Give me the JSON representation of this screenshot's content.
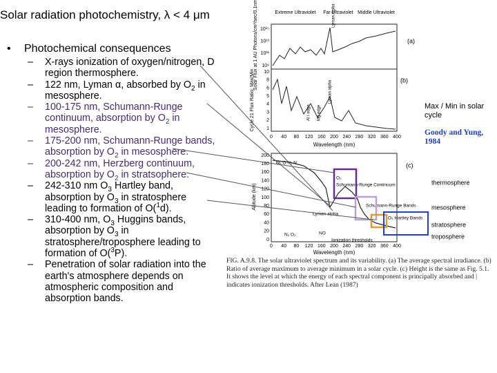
{
  "header": {
    "title": "Solar radiation photochemistry,  λ < 4 μm"
  },
  "bullet": "Photochemical consequences",
  "items": [
    [
      {
        "text": "X-rays ionization of oxygen/nitrogen, D region thermosphere."
      }
    ],
    [
      {
        "text": "122 nm, Lyman α, absorbed by O"
      },
      {
        "sub": "2"
      },
      {
        "text": " in mesosphere."
      }
    ],
    [
      {
        "text": "100-175 nm, Schumann-Runge continuum, absorption by O"
      },
      {
        "sub": "2"
      },
      {
        "text": " in mesosphere."
      }
    ],
    [
      {
        "text": "175-200 nm, Schumann-Runge bands, absorption by O"
      },
      {
        "sub": "2"
      },
      {
        "text": " in mesosphere."
      }
    ],
    [
      {
        "text": "200-242 nm, Herzberg continuum, absorption by O"
      },
      {
        "sub": "2"
      },
      {
        "text": " in stratsophere."
      }
    ],
    [
      {
        "text": "242-310 nm O"
      },
      {
        "sub": "3"
      },
      {
        "text": " Hartley band, absorption by O"
      },
      {
        "sub": "3"
      },
      {
        "text": " in stratosphere leading to formation of O("
      },
      {
        "sup": "1"
      },
      {
        "text": "d)."
      }
    ],
    [
      {
        "text": "310-400 nm, O"
      },
      {
        "sub": "3"
      },
      {
        "text": " Huggins bands, absorption by O"
      },
      {
        "sub": "3"
      },
      {
        "text": " in stratosphere/troposphere leading to formation of O("
      },
      {
        "sup": "3"
      },
      {
        "text": "P)."
      }
    ],
    [
      {
        "text": "Penetration of solar radiation into the earth's atmosphere depends on atmospheric composition and absorption bands."
      }
    ]
  ],
  "figure": {
    "regions": [
      "Extreme Ultraviolet",
      "Far Ultraviolet",
      "Middle Ultraviolet"
    ],
    "panel_a": {
      "label": "(a)",
      "ylabel": "Solar Flux at 1 AU Photons/cm²/sec/0.1nm",
      "yticks": [
        "10¹⁵",
        "10¹³",
        "10¹¹",
        "10⁹"
      ],
      "annotation": "Lyman Alpha"
    },
    "panel_b": {
      "label": "(b)",
      "ylabel": "Cycle 21 Flux Ratio: Max/Min",
      "yticks": [
        "10",
        "8",
        "6",
        "5",
        "4",
        "3",
        "2",
        "1"
      ],
      "annotations": [
        "Lyman alpha",
        "Al I edge",
        "Mg edge"
      ]
    },
    "wavelength_ticks": [
      "0",
      "40",
      "80",
      "120",
      "160",
      "200",
      "240",
      "280",
      "320",
      "360",
      "400"
    ],
    "xlabel": "Wavelength (nm)",
    "panel_c": {
      "label": "(c)",
      "ylabel": "Altitude (km)",
      "yticks": [
        "200",
        "180",
        "160",
        "140",
        "120",
        "100",
        "80",
        "60",
        "40",
        "20",
        "0"
      ],
      "annotations": [
        "O₂ O N₂ N",
        "O₂",
        "Schumann-Runge Continuum",
        "Lyman alpha",
        "Schumann-Runge Bands",
        "O₃ Hartley Bands",
        "N₂ O₂",
        "NO",
        "Ionization thresholds"
      ]
    },
    "caption": "FIG. A.9.8. The solar ultraviolet spectrum and its variability. (a) The average spectral irradiance. (b) Ratio of average maximum to average minimum in a solar cycle. (c) Height is the same as Fig. 5.1. It shows the level at which the energy of each spectral component is principally absorbed and | indicates ionization thresholds. After Lean (1987)",
    "cycle_note": "Max / Min in solar cycle",
    "source": "Goody and Yung, 1984",
    "layers": [
      "thermosphere",
      "mesosphere",
      "stratosphere",
      "troposphere"
    ]
  }
}
